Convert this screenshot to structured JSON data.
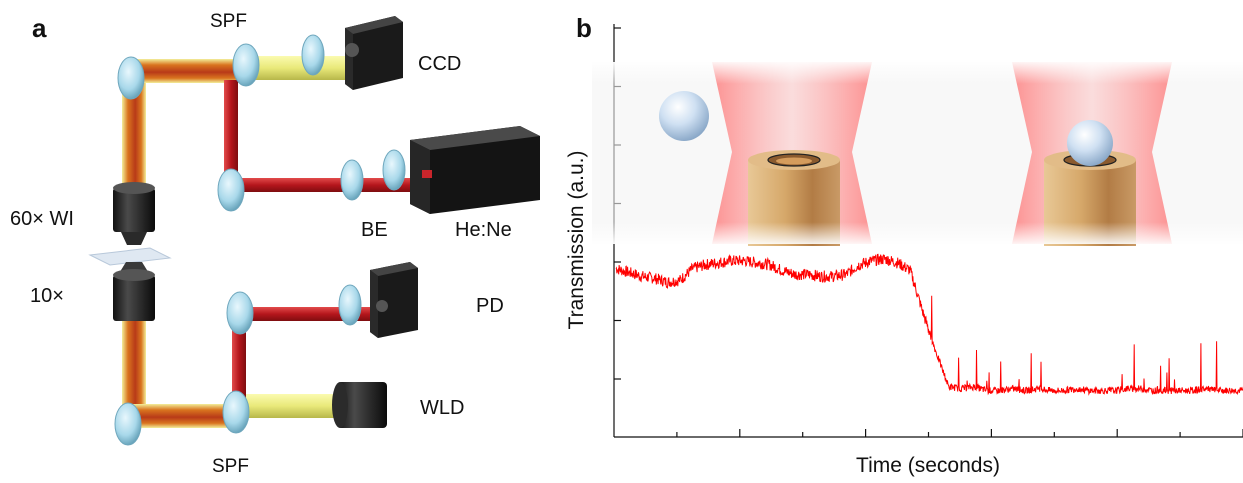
{
  "panel_a": {
    "letter": "a",
    "labels": {
      "spf_top": "SPF",
      "ccd": "CCD",
      "objective_60x": "60× WI",
      "objective_10x": "10×",
      "be": "BE",
      "laser": "He:Ne",
      "pd": "PD",
      "wld": "WLD",
      "spf_bottom": "SPF"
    },
    "colors": {
      "red_beam": "#c9252b",
      "yellow_beam": "#e9e97a",
      "optic": "#a8d8ea",
      "device": "#1a1a1a"
    }
  },
  "panel_b": {
    "letter": "b",
    "ylabel": "Transmission (a.u.)",
    "xlabel": "Time (seconds)",
    "colors": {
      "trace": "#ff0000",
      "trap_glow": "#ff7070",
      "fiber": "#d9b07a",
      "particle": "#b9d3ec"
    }
  },
  "chart_data": {
    "type": "line",
    "title": "",
    "xlabel": "Time (seconds)",
    "ylabel": "Transmission (a.u.)",
    "x_ticks_major": 5,
    "y_ticks": 7,
    "grid": false,
    "series": [
      {
        "values_description_free": true,
        "x": [
          0,
          0.1,
          0.2,
          0.3,
          0.4,
          0.5,
          0.6,
          0.7,
          0.8,
          0.9,
          1.0,
          1.1,
          1.2,
          1.3,
          1.4,
          1.5,
          1.6,
          1.7,
          1.8,
          1.9,
          2.0,
          2.1,
          2.2,
          2.3,
          2.4,
          2.5,
          2.6,
          2.7,
          2.8,
          2.9,
          3.0,
          3.1,
          3.2,
          3.3,
          3.4,
          3.5,
          3.6,
          3.7,
          3.8,
          3.9,
          4.0,
          4.1,
          4.2,
          4.3,
          4.4,
          4.5,
          4.6,
          4.7,
          4.8,
          4.9
        ],
        "y": [
          0.93,
          0.91,
          0.89,
          0.88,
          0.86,
          0.87,
          0.93,
          0.95,
          0.96,
          0.97,
          0.97,
          0.96,
          0.95,
          0.92,
          0.9,
          0.9,
          0.89,
          0.89,
          0.9,
          0.95,
          0.97,
          0.98,
          0.96,
          0.92,
          0.7,
          0.5,
          0.32,
          0.31,
          0.32,
          0.3,
          0.3,
          0.31,
          0.3,
          0.31,
          0.3,
          0.3,
          0.31,
          0.3,
          0.3,
          0.3,
          0.31,
          0.31,
          0.3,
          0.3,
          0.3,
          0.3,
          0.31,
          0.3,
          0.3,
          0.3
        ]
      }
    ]
  }
}
